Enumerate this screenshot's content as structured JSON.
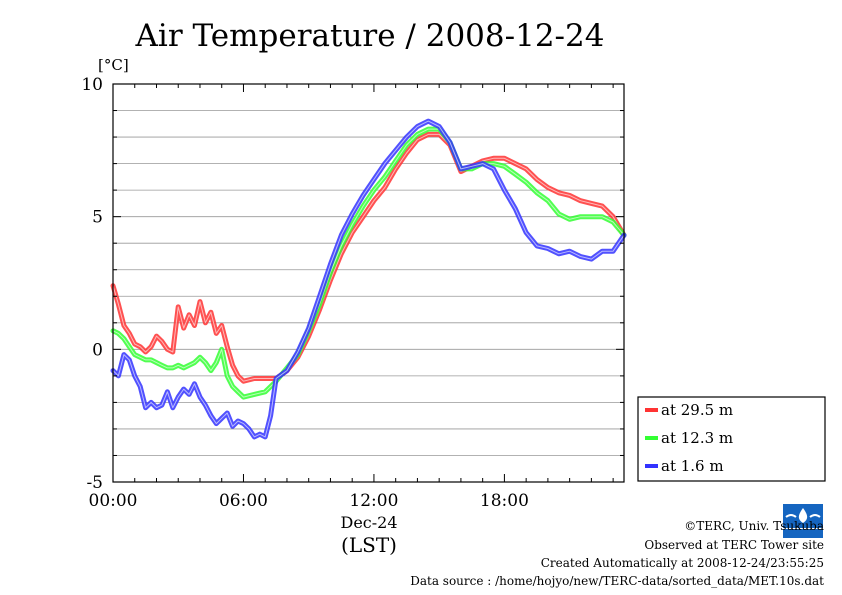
{
  "chart_data": {
    "type": "line",
    "title": "Air Temperature / 2008-12-24",
    "ylabel": "[°C]",
    "ylim": [
      -5,
      10
    ],
    "yticks": [
      -5,
      0,
      5,
      10
    ],
    "xlim": [
      0,
      23.5
    ],
    "xticks": [
      {
        "x": 0,
        "label": "00:00"
      },
      {
        "x": 6,
        "label": "06:00"
      },
      {
        "x": 12,
        "label": "12:00"
      },
      {
        "x": 18,
        "label": "18:00"
      }
    ],
    "xdate": "Dec-24",
    "xunit": "(LST)",
    "grid": "horizontal",
    "legend_position": "right-bottom",
    "series": [
      {
        "name": "at 29.5 m",
        "color": "#ff3333",
        "x": [
          0,
          0.25,
          0.5,
          0.75,
          1,
          1.25,
          1.5,
          1.75,
          2,
          2.25,
          2.5,
          2.75,
          3,
          3.25,
          3.5,
          3.75,
          4,
          4.25,
          4.5,
          4.75,
          5,
          5.25,
          5.5,
          5.75,
          6,
          6.5,
          7,
          7.5,
          8,
          8.5,
          9,
          9.5,
          10,
          10.5,
          11,
          11.5,
          12,
          12.5,
          13,
          13.5,
          14,
          14.5,
          15,
          15.5,
          16,
          16.5,
          17,
          17.5,
          18,
          18.5,
          19,
          19.5,
          20,
          20.5,
          21,
          21.5,
          22,
          22.5,
          23,
          23.5
        ],
        "values": [
          2.4,
          1.7,
          0.9,
          0.6,
          0.2,
          0.1,
          -0.1,
          0.1,
          0.5,
          0.3,
          0.0,
          -0.1,
          1.6,
          0.8,
          1.3,
          0.9,
          1.8,
          1.0,
          1.4,
          0.6,
          0.9,
          0.1,
          -0.6,
          -1.0,
          -1.2,
          -1.1,
          -1.1,
          -1.1,
          -0.8,
          -0.3,
          0.5,
          1.5,
          2.6,
          3.6,
          4.4,
          5.0,
          5.6,
          6.1,
          6.8,
          7.4,
          7.9,
          8.1,
          8.1,
          7.7,
          6.7,
          6.9,
          7.1,
          7.2,
          7.2,
          7.0,
          6.8,
          6.4,
          6.1,
          5.9,
          5.8,
          5.6,
          5.5,
          5.4,
          5.0,
          4.3
        ]
      },
      {
        "name": "at 12.3 m",
        "color": "#33ff33",
        "x": [
          0,
          0.25,
          0.5,
          0.75,
          1,
          1.25,
          1.5,
          1.75,
          2,
          2.25,
          2.5,
          2.75,
          3,
          3.25,
          3.5,
          3.75,
          4,
          4.25,
          4.5,
          4.75,
          5,
          5.25,
          5.5,
          5.75,
          6,
          6.5,
          7,
          7.5,
          8,
          8.5,
          9,
          9.5,
          10,
          10.5,
          11,
          11.5,
          12,
          12.5,
          13,
          13.5,
          14,
          14.5,
          15,
          15.5,
          16,
          16.5,
          17,
          17.5,
          18,
          18.5,
          19,
          19.5,
          20,
          20.5,
          21,
          21.5,
          22,
          22.5,
          23,
          23.5
        ],
        "values": [
          0.7,
          0.6,
          0.4,
          0.1,
          -0.2,
          -0.3,
          -0.4,
          -0.4,
          -0.5,
          -0.6,
          -0.7,
          -0.7,
          -0.6,
          -0.7,
          -0.6,
          -0.5,
          -0.3,
          -0.5,
          -0.8,
          -0.5,
          0.0,
          -1.0,
          -1.4,
          -1.6,
          -1.8,
          -1.7,
          -1.6,
          -1.2,
          -0.7,
          -0.2,
          0.7,
          1.7,
          2.9,
          3.9,
          4.7,
          5.4,
          6.0,
          6.5,
          7.1,
          7.7,
          8.1,
          8.3,
          8.3,
          7.8,
          6.8,
          6.8,
          7.0,
          7.0,
          6.9,
          6.6,
          6.3,
          5.9,
          5.6,
          5.1,
          4.9,
          5.0,
          5.0,
          5.0,
          4.8,
          4.3
        ]
      },
      {
        "name": "at 1.6 m",
        "color": "#3333ff",
        "x": [
          0,
          0.25,
          0.5,
          0.75,
          1,
          1.25,
          1.5,
          1.75,
          2,
          2.25,
          2.5,
          2.75,
          3,
          3.25,
          3.5,
          3.75,
          4,
          4.25,
          4.5,
          4.75,
          5,
          5.25,
          5.5,
          5.75,
          6,
          6.25,
          6.5,
          6.75,
          7,
          7.25,
          7.5,
          8,
          8.5,
          9,
          9.5,
          10,
          10.5,
          11,
          11.5,
          12,
          12.5,
          13,
          13.5,
          14,
          14.5,
          15,
          15.5,
          16,
          16.5,
          17,
          17.5,
          18,
          18.5,
          19,
          19.5,
          20,
          20.5,
          21,
          21.5,
          22,
          22.5,
          23,
          23.5
        ],
        "values": [
          -0.8,
          -1.0,
          -0.2,
          -0.4,
          -1.0,
          -1.4,
          -2.2,
          -2.0,
          -2.2,
          -2.1,
          -1.6,
          -2.2,
          -1.8,
          -1.5,
          -1.7,
          -1.3,
          -1.8,
          -2.1,
          -2.5,
          -2.8,
          -2.6,
          -2.4,
          -2.9,
          -2.7,
          -2.8,
          -3.0,
          -3.3,
          -3.2,
          -3.3,
          -2.5,
          -1.1,
          -0.8,
          -0.1,
          0.8,
          2.0,
          3.2,
          4.3,
          5.1,
          5.8,
          6.4,
          7.0,
          7.5,
          8.0,
          8.4,
          8.6,
          8.4,
          7.8,
          6.8,
          6.9,
          7.0,
          6.8,
          6.0,
          5.3,
          4.4,
          3.9,
          3.8,
          3.6,
          3.7,
          3.5,
          3.4,
          3.7,
          3.7,
          4.3
        ]
      }
    ]
  },
  "credits": {
    "copyright": "©TERC, Univ. Tsukuba",
    "observed": "Observed at TERC Tower site",
    "created": "Created Automatically at 2008-12-24/23:55:25",
    "source": "Data source : /home/hojyo/new/TERC-data/sorted_data/MET.10s.dat"
  },
  "logo": {
    "text": "TERC",
    "color": "#1565c0"
  }
}
